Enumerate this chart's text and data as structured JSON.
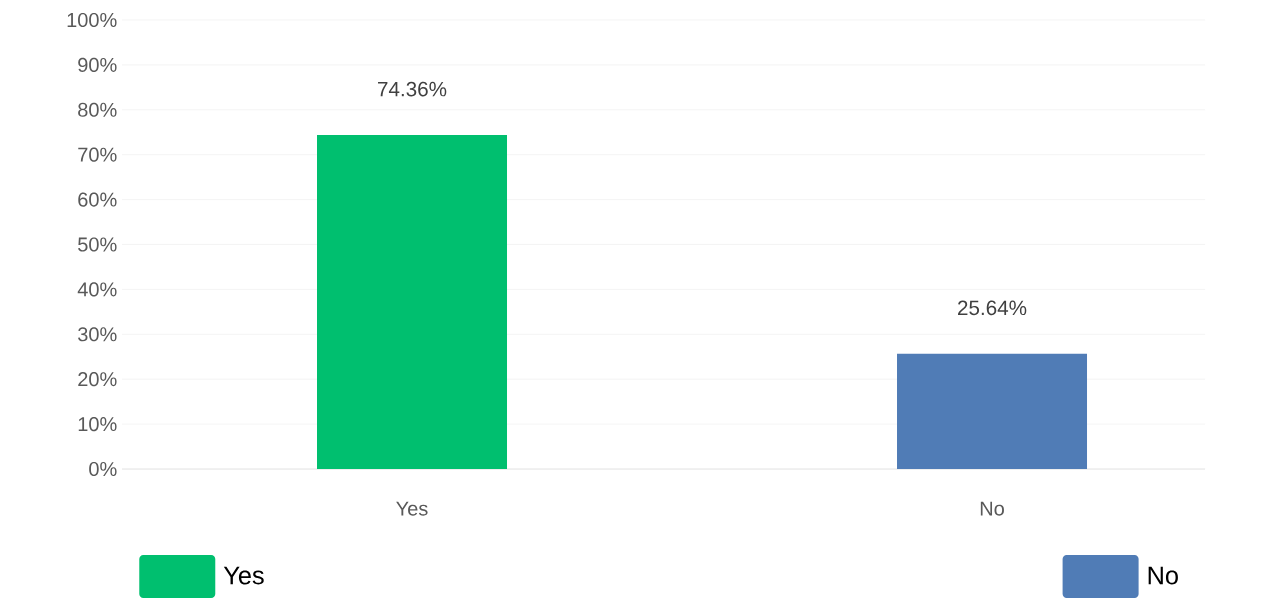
{
  "chart_data": {
    "type": "bar",
    "categories": [
      "Yes",
      "No"
    ],
    "series": [
      {
        "name": "Yes",
        "color": "#00bf6f",
        "values": [
          74.36,
          null
        ],
        "value_labels": [
          "74.36%",
          null
        ]
      },
      {
        "name": "No",
        "color": "#507cb6",
        "values": [
          null,
          25.64
        ],
        "value_labels": [
          null,
          "25.64%"
        ]
      }
    ],
    "ylim": [
      0,
      100
    ],
    "yticks": [
      {
        "value": 0,
        "label": "0%"
      },
      {
        "value": 10,
        "label": "10%"
      },
      {
        "value": 20,
        "label": "20%"
      },
      {
        "value": 30,
        "label": "30%"
      },
      {
        "value": 40,
        "label": "40%"
      },
      {
        "value": 50,
        "label": "50%"
      },
      {
        "value": 60,
        "label": "60%"
      },
      {
        "value": 70,
        "label": "70%"
      },
      {
        "value": 80,
        "label": "80%"
      },
      {
        "value": 90,
        "label": "90%"
      },
      {
        "value": 100,
        "label": "100%"
      }
    ],
    "grid": "y",
    "legend": "bottom"
  }
}
